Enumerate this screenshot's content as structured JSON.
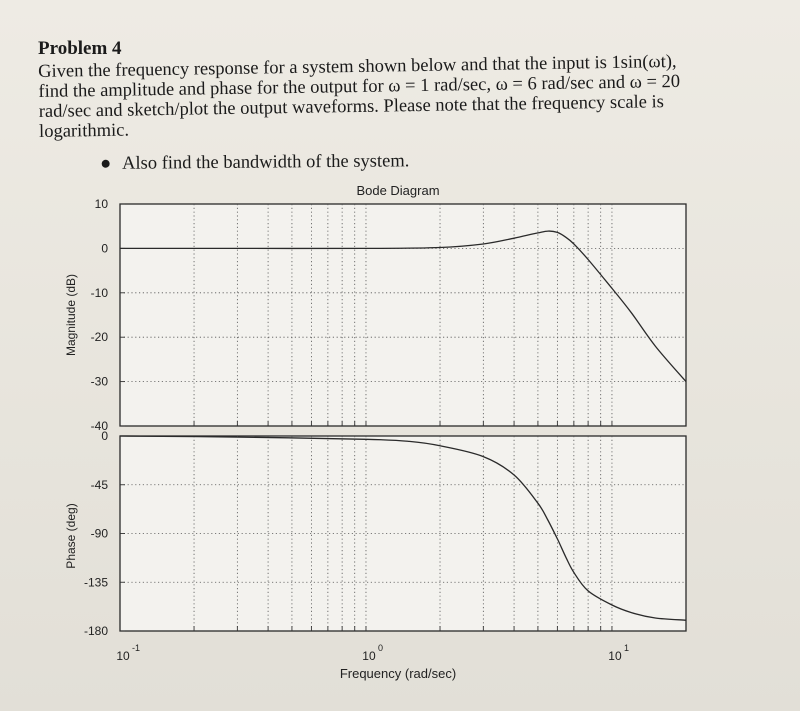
{
  "problem": {
    "heading": "Problem 4",
    "lines": [
      "Given the frequency response for a system shown below and that the input is 1sin(ωt),",
      "find the amplitude and phase for the output for ω = 1 rad/sec, ω = 6 rad/sec and ω = 20",
      "rad/sec and sketch/plot the output waveforms. Please note that the frequency scale is",
      "logarithmic."
    ],
    "bullet": "Also find the bandwidth of the system."
  },
  "chart_data": [
    {
      "type": "line",
      "title": "Bode Diagram",
      "xlabel": "",
      "ylabel": "Magnitude (dB)",
      "x_scale": "log",
      "xlim": [
        0.1,
        20
      ],
      "ylim": [
        -40,
        10
      ],
      "yticks": [
        "10",
        "0",
        "-10",
        "-20",
        "-30",
        "-40"
      ],
      "grid": true,
      "x": [
        0.1,
        0.3,
        1,
        2,
        3,
        4,
        5,
        5.5,
        6,
        6.5,
        7,
        8,
        10,
        12,
        15,
        20
      ],
      "y": [
        0,
        0,
        0,
        0.2,
        1.0,
        2.3,
        3.5,
        3.9,
        3.6,
        2.5,
        1.0,
        -2.5,
        -9,
        -14.5,
        -22,
        -30
      ]
    },
    {
      "type": "line",
      "title": "",
      "xlabel": "Frequency (rad/sec)",
      "ylabel": "Phase (deg)",
      "x_scale": "log",
      "xlim": [
        0.1,
        20
      ],
      "ylim": [
        -180,
        0
      ],
      "yticks": [
        "0",
        "-45",
        "-90",
        "-135",
        "-180"
      ],
      "xticks": [
        {
          "base": "10",
          "exp": "-1"
        },
        {
          "base": "10",
          "exp": "0"
        },
        {
          "base": "10",
          "exp": "1"
        }
      ],
      "grid": true,
      "x": [
        0.1,
        0.3,
        1,
        1.5,
        2,
        3,
        4,
        5,
        5.5,
        6,
        6.5,
        7,
        8,
        10,
        12,
        15,
        20
      ],
      "y": [
        0,
        -1,
        -3,
        -5,
        -9,
        -19,
        -36,
        -62,
        -78,
        -95,
        -112,
        -126,
        -143,
        -156,
        -163,
        -168,
        -170
      ]
    }
  ]
}
